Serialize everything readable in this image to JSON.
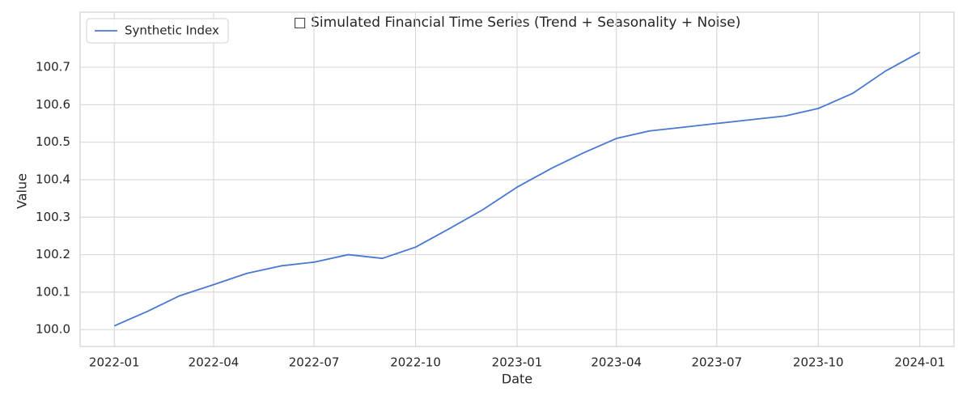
{
  "chart_data": {
    "type": "line",
    "title": "□ Simulated Financial Time Series (Trend + Seasonality + Noise)",
    "x_label": "Date",
    "y_label": "Value",
    "x": [
      "2022-01",
      "2022-02",
      "2022-03",
      "2022-04",
      "2022-05",
      "2022-06",
      "2022-07",
      "2022-08",
      "2022-09",
      "2022-10",
      "2022-11",
      "2022-12",
      "2023-01",
      "2023-02",
      "2023-03",
      "2023-04",
      "2023-05",
      "2023-06",
      "2023-07",
      "2023-08",
      "2023-09",
      "2023-10",
      "2023-11",
      "2023-12",
      "2024-01"
    ],
    "series": [
      {
        "name": "Synthetic Index",
        "color": "#4878d0",
        "values": [
          100.01,
          100.05,
          100.09,
          100.12,
          100.15,
          100.17,
          100.18,
          100.2,
          100.19,
          100.22,
          100.27,
          100.32,
          100.38,
          100.43,
          100.47,
          100.51,
          100.53,
          100.54,
          100.55,
          100.56,
          100.57,
          100.59,
          100.63,
          100.69,
          100.74
        ]
      }
    ],
    "xlim": [
      "2021-12",
      "2024-02"
    ],
    "xticks": [
      "2022-01",
      "2022-04",
      "2022-07",
      "2022-10",
      "2023-01",
      "2023-04",
      "2023-07",
      "2023-10",
      "2024-01"
    ],
    "ylim": [
      99.955,
      100.847
    ],
    "yticks": [
      {
        "value": 100,
        "label": "100.0"
      },
      100.1,
      100.2,
      100.3,
      100.4,
      100.5,
      100.6,
      100.7
    ],
    "grid": true,
    "legend": "upper-left"
  }
}
